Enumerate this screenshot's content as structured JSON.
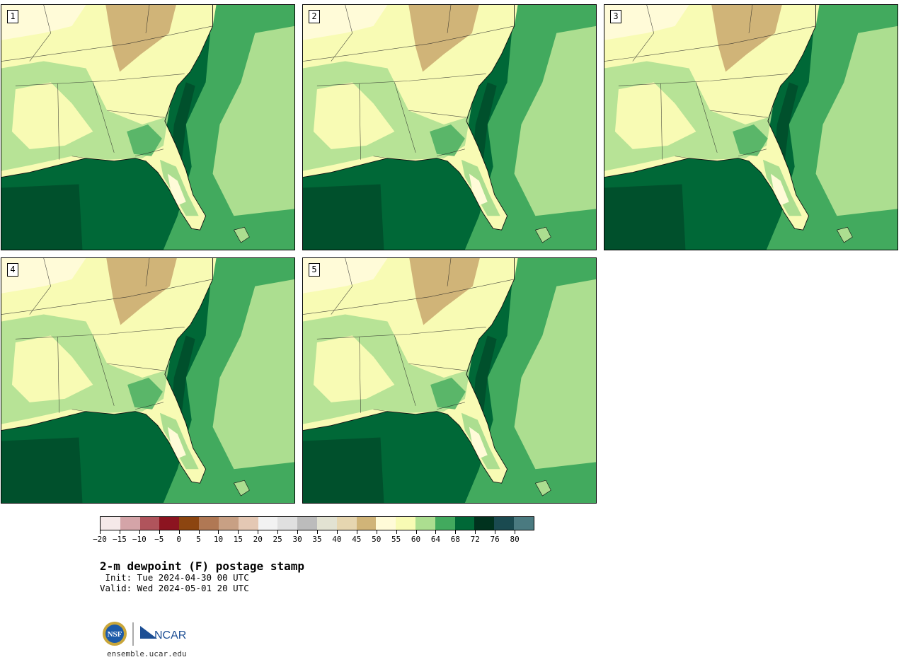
{
  "panels": [
    {
      "label": "1",
      "variant": 0
    },
    {
      "label": "2",
      "variant": 1
    },
    {
      "label": "3",
      "variant": 2
    },
    {
      "label": "4",
      "variant": 3
    },
    {
      "label": "5",
      "variant": 4
    }
  ],
  "colorbar": {
    "colors": [
      "#f5e9e9",
      "#d4a4a8",
      "#b0545c",
      "#8c1420",
      "#8c4510",
      "#b07854",
      "#c8a084",
      "#e4c8b4",
      "#f2f2f2",
      "#e0e0e0",
      "#bcbcbc",
      "#e2e2d2",
      "#e6d6b0",
      "#d0b478",
      "#fffbd8",
      "#f8fbb4",
      "#acde90",
      "#42aa5e",
      "#006837",
      "#00321e",
      "#1a4a50",
      "#4a7a80"
    ],
    "tick_labels": [
      "−20",
      "−15",
      "−10",
      "−5",
      "0",
      "5",
      "10",
      "15",
      "20",
      "25",
      "30",
      "35",
      "40",
      "45",
      "50",
      "55",
      "60",
      "64",
      "68",
      "72",
      "76",
      "80"
    ]
  },
  "title": "2-m dewpoint (F) postage stamp",
  "init": " Init: Tue 2024-04-30 00 UTC",
  "valid": "Valid: Wed 2024-05-01 20 UTC",
  "logos": {
    "nsf_label": "NSF",
    "ncar_label": "NCAR"
  },
  "site": "ensemble.ucar.edu"
}
